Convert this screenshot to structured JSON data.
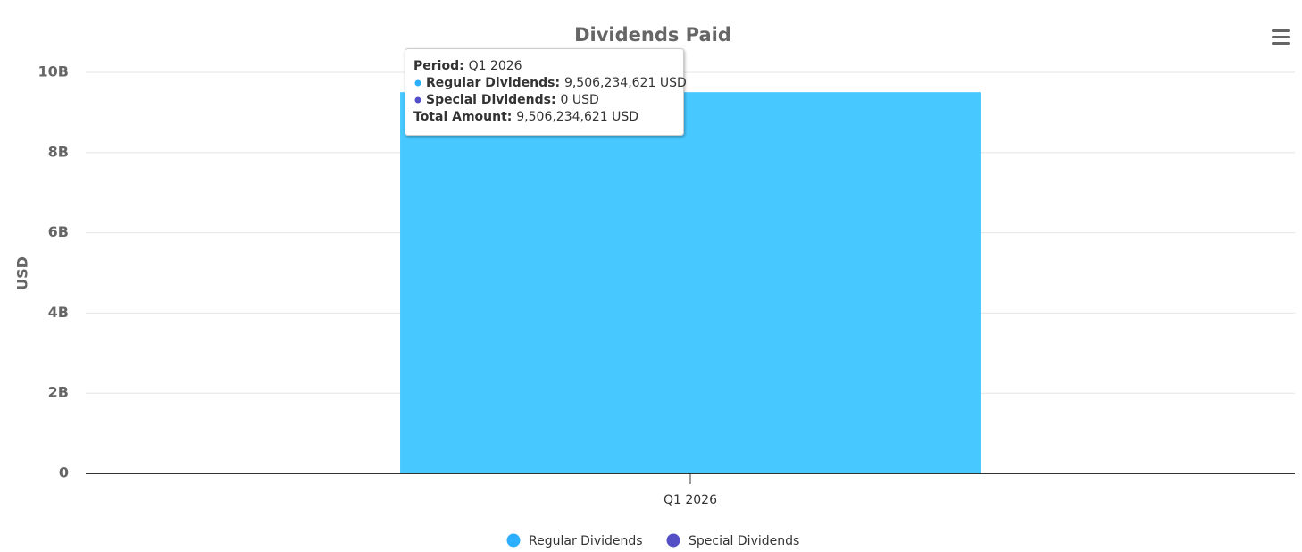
{
  "chart_data": {
    "type": "stacked_bar",
    "title": "Dividends Paid",
    "y_label": "USD",
    "categories": [
      "Q1 2026"
    ],
    "series": [
      {
        "name": "Regular Dividends",
        "color": "#47c8ff",
        "legend_color": "#2caffe",
        "values": [
          9506234621
        ],
        "value_labels": [
          "9,506,234,621 USD"
        ]
      },
      {
        "name": "Special Dividends",
        "color": "#544fc5",
        "legend_color": "#544fc5",
        "values": [
          0
        ],
        "value_labels": [
          "0 USD"
        ]
      }
    ],
    "ylim": [
      0,
      10000000000
    ],
    "yticks": [
      0,
      {
        "value": 2000000000,
        "label": "2B"
      },
      {
        "value": 4000000000,
        "label": "4B"
      },
      {
        "value": 6000000000,
        "label": "6B"
      },
      {
        "value": 8000000000,
        "label": "8B"
      },
      {
        "value": 10000000000,
        "label": "10B"
      }
    ],
    "grid": true,
    "tooltip": {
      "period_label": "Period:",
      "series_labels": [
        "Regular Dividends:",
        "Special Dividends:"
      ],
      "total_label": "Total Amount:",
      "total": "9,506,234,621 USD"
    }
  }
}
